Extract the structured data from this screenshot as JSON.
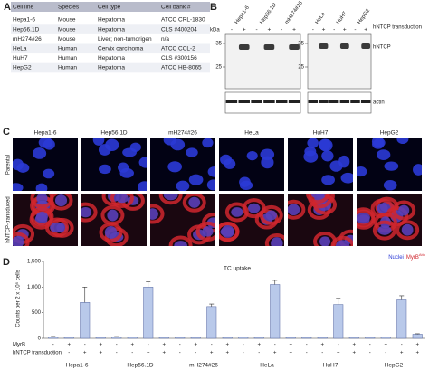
{
  "panels": {
    "a": "A",
    "b": "B",
    "c": "C",
    "d": "D"
  },
  "table": {
    "header": [
      "Cell line",
      "Species",
      "Cell type",
      "Cell bank #"
    ],
    "rows": [
      [
        "Hepa1-6",
        "Mouse",
        "Hepatoma",
        "ATCC CRL-1830"
      ],
      [
        "Hep56.1D",
        "Mouse",
        "Hepatoma",
        "CLS #400204"
      ],
      [
        "mH274#26",
        "Mouse",
        "Liver; non-tumorigen",
        "n/a"
      ],
      [
        "HeLa",
        "Human",
        "Cervix carcinoma",
        "ATCC CCL-2"
      ],
      [
        "HuH7",
        "Human",
        "Hepatoma",
        "CLS #300156"
      ],
      [
        "HepG2",
        "Human",
        "Hepatoma",
        "ATCC HB-8065"
      ]
    ]
  },
  "blot": {
    "kda": "kDa",
    "markers": [
      "35",
      "25"
    ],
    "left_lines": [
      "Hepa1-6",
      "Hep56.1D",
      "mH274#26"
    ],
    "right_lines": [
      "HeLa",
      "HuH7",
      "HepG2"
    ],
    "lanes": [
      "-",
      "+",
      "-",
      "+",
      "-",
      "+"
    ],
    "row_title": "hNTCP transduction",
    "band_label": "hNTCP",
    "loading_label": "actin"
  },
  "microscopy": {
    "columns": [
      "Hepa1-6",
      "Hep56.1D",
      "mH274#26",
      "HeLa",
      "HuH7",
      "HepG2"
    ],
    "rows": [
      "Parental",
      "hNTCP-transduced"
    ],
    "legend": {
      "nuclei": "Nuclei",
      "myrb": "MyrB",
      "dye": "Atto"
    }
  },
  "chart_data": {
    "type": "bar",
    "title": "TC uptake",
    "y_label": "Counts per 2 x 10⁵ cells",
    "categories": [
      "Hepa1-6",
      "Hep56.1D",
      "mH274#26",
      "HeLa",
      "HuH7",
      "HepG2"
    ],
    "condition_rows": [
      {
        "label": "MyrB",
        "signs": [
          "-",
          "+",
          "-",
          "+"
        ]
      },
      {
        "label": "hNTCP transduction",
        "signs": [
          "-",
          "-",
          "+",
          "+"
        ]
      }
    ],
    "color": "#b9c9ea",
    "series": [
      {
        "values": [
          30,
          30,
          20,
          25,
          20,
          20
        ],
        "errors": [
          6,
          5,
          4,
          5,
          4,
          4
        ]
      },
      {
        "values": [
          20,
          25,
          20,
          20,
          20,
          25
        ],
        "errors": [
          4,
          5,
          4,
          4,
          4,
          5
        ]
      },
      {
        "values": [
          700,
          1000,
          620,
          1050,
          660,
          750
        ],
        "errors": [
          300,
          100,
          50,
          80,
          120,
          80
        ]
      },
      {
        "values": [
          20,
          20,
          20,
          20,
          20,
          80
        ],
        "errors": [
          4,
          4,
          4,
          4,
          4,
          10
        ]
      }
    ],
    "ylim": [
      0,
      1500
    ],
    "yticks": [
      0,
      500,
      {
        "value": 1000,
        "label": "1,000"
      },
      {
        "value": 1500,
        "label": "1,500"
      }
    ]
  }
}
